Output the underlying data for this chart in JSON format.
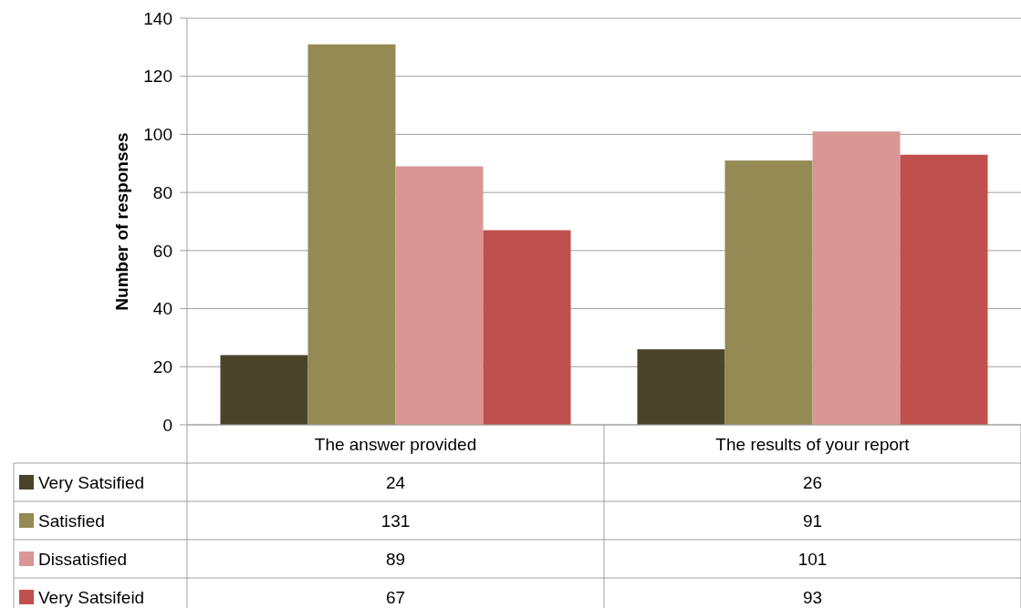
{
  "chart_data": {
    "type": "bar",
    "ylabel": "Number of responses",
    "categories": [
      "The answer provided",
      "The results of your report"
    ],
    "series": [
      {
        "name": "Very Satsified",
        "color": "#4a452a",
        "values": [
          24,
          26
        ]
      },
      {
        "name": "Satisfied",
        "color": "#948a54",
        "values": [
          131,
          91
        ]
      },
      {
        "name": "Dissatisfied",
        "color": "#d99694",
        "values": [
          89,
          101
        ]
      },
      {
        "name": "Very Satsifeid",
        "color": "#c0504d",
        "values": [
          67,
          93
        ]
      }
    ],
    "ylim": [
      0,
      140
    ],
    "yticks": [
      0,
      20,
      40,
      60,
      80,
      100,
      120,
      140
    ],
    "grid": "y",
    "legend": "bottom",
    "data_labels": true
  }
}
